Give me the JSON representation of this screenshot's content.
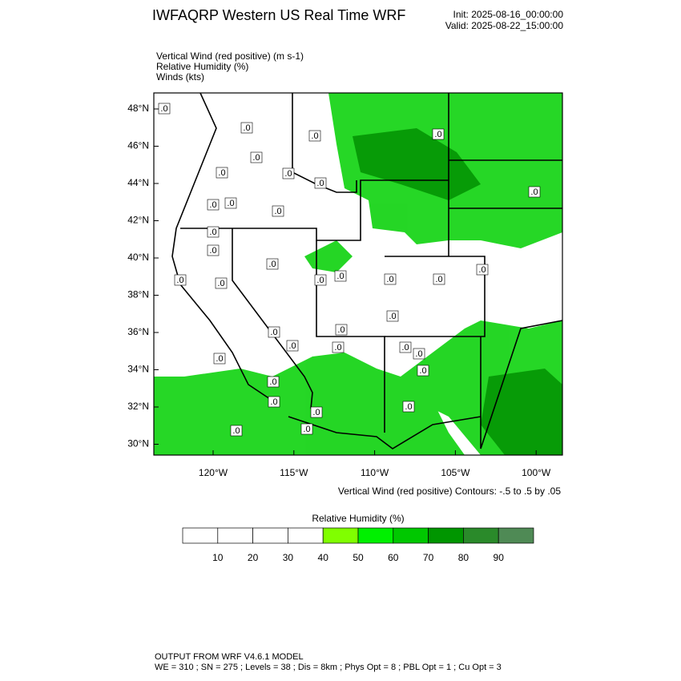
{
  "header": {
    "title": "IWFAQRP Western US Real Time WRF",
    "init": "Init: 2025-08-16_00:00:00",
    "valid": "Valid: 2025-08-22_15:00:00"
  },
  "fields": [
    "Vertical Wind (red positive)   (m s-1)",
    "Relative Humidity   (%)",
    "Winds   (kts)"
  ],
  "map": {
    "lat_labels": [
      "48°N",
      "46°N",
      "44°N",
      "42°N",
      "40°N",
      "38°N",
      "36°N",
      "34°N",
      "32°N",
      "30°N"
    ],
    "lon_labels": [
      "120°W",
      "115°W",
      "110°W",
      "105°W",
      "100°W"
    ],
    "contour_label": ".0",
    "contour_note": "Vertical Wind (red positive) Contours: -.5 to .5 by .05"
  },
  "colorbar": {
    "title": "Relative Humidity  (%)",
    "ticks": [
      10,
      20,
      30,
      40,
      50,
      60,
      70,
      80,
      90
    ],
    "colors": [
      "#ffffff",
      "#ffffff",
      "#ffffff",
      "#ffffff",
      "#80ff00",
      "#00f000",
      "#00c800",
      "#009600",
      "#2a8a2a",
      "#4f8a55"
    ]
  },
  "footer": {
    "line1": "OUTPUT FROM WRF V4.6.1 MODEL",
    "line2": "WE = 310 ; SN = 275 ; Levels = 38 ; Dis = 8km ; Phys Opt = 8 ; PBL Opt = 1 ; Cu Opt = 3"
  }
}
